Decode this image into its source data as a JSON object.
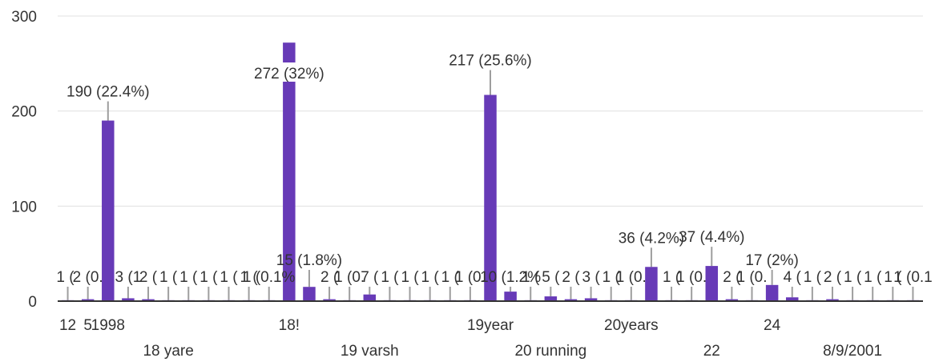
{
  "chart_data": {
    "type": "bar",
    "categories": [
      "12",
      "5",
      "1998",
      "",
      "",
      "18 yare",
      "",
      "",
      "",
      "",
      "",
      "18!",
      "",
      "",
      "",
      "19 varsh",
      "",
      "",
      "",
      "",
      "",
      "19year",
      "",
      "",
      "20 running",
      "",
      "",
      "",
      "20years",
      "",
      "",
      "",
      "22",
      "",
      "",
      "24",
      "",
      "",
      "",
      "8/9/2001",
      "",
      "",
      ""
    ],
    "values": [
      1,
      2,
      190,
      3,
      2,
      1,
      1,
      1,
      1,
      1,
      1,
      272,
      15,
      2,
      1,
      7,
      1,
      1,
      1,
      1,
      1,
      217,
      10,
      1,
      5,
      2,
      3,
      1,
      1,
      36,
      1,
      1,
      37,
      2,
      1,
      17,
      4,
      1,
      2,
      1,
      1,
      1,
      1
    ],
    "data_labels": [
      "1 (",
      "2 (0.",
      "190 (22.4%)",
      "3 (1",
      "2 (",
      "1 (",
      "1 (",
      "1 (",
      "1 (",
      "1 (",
      "1 (0.1%",
      "272 (32%)",
      "15 (1.8%)",
      "2 (",
      "1 (0.",
      "7 (",
      "1 (",
      "1 (",
      "1 (",
      "1 (",
      "1 (0.",
      "217 (25.6%)",
      "10 (1.2%",
      "1 (",
      "5 (",
      "2 (",
      "3 (",
      "1 (",
      "1 (0.",
      "36 (4.2%)",
      "1 (",
      "1 (0.",
      "37 (4.4%)",
      "2 (",
      "1 (0.",
      "17 (2%)",
      "4 (",
      "1 (",
      "2 (",
      "1 (",
      "1 (",
      "1 (",
      "1 (0.1"
    ],
    "ylim": [
      0,
      300
    ],
    "yticks": [
      0,
      100,
      200,
      300
    ],
    "grid": true,
    "bar_color": "#673ab7",
    "label_color": "#333333",
    "axis_color": "#333333",
    "grid_color": "#e0e0e0"
  }
}
